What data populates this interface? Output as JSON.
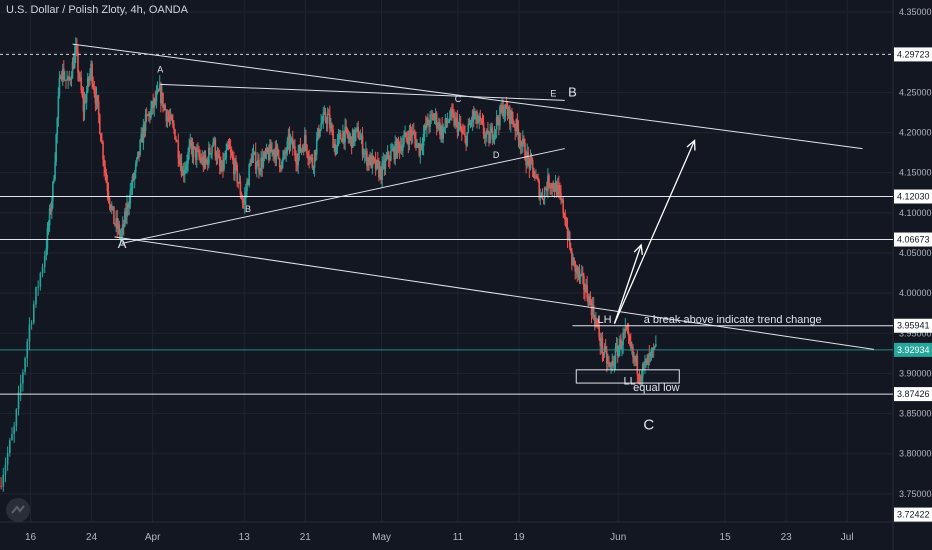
{
  "header": {
    "title": "U.S. Dollar / Polish Zloty, 4h, OANDA"
  },
  "chart_data": {
    "type": "candlestick",
    "symbol": "USDPLN",
    "timeframe": "4h",
    "x_ticks": [
      {
        "label": "16",
        "x": 16
      },
      {
        "label": "24",
        "x": 24
      },
      {
        "label": "Apr",
        "x": 32
      },
      {
        "label": "13",
        "x": 44
      },
      {
        "label": "21",
        "x": 52
      },
      {
        "label": "May",
        "x": 62
      },
      {
        "label": "11",
        "x": 72
      },
      {
        "label": "19",
        "x": 80
      },
      {
        "label": "Jun",
        "x": 93
      },
      {
        "label": "15",
        "x": 107
      },
      {
        "label": "23",
        "x": 115
      },
      {
        "label": "Jul",
        "x": 123
      }
    ],
    "y_ticks": [
      3.75,
      3.8,
      3.85,
      3.9,
      3.95,
      4.0,
      4.05,
      4.1,
      4.15,
      4.2,
      4.25,
      4.3,
      4.35
    ],
    "ylim": [
      3.715,
      4.365
    ],
    "xlim": [
      12,
      129
    ],
    "price_labels": [
      {
        "value": 4.29723,
        "text": "4.29723",
        "style": "dashed"
      },
      {
        "value": 4.1203,
        "text": "4.12030",
        "style": "line"
      },
      {
        "value": 4.06673,
        "text": "4.06673",
        "style": "line"
      },
      {
        "value": 3.95941,
        "text": "3.95941",
        "style": "line"
      },
      {
        "value": 3.92934,
        "text": "3.92934",
        "style": "current"
      },
      {
        "value": 3.87426,
        "text": "3.87426",
        "style": "line"
      },
      {
        "value": 3.72422,
        "text": "3.72422",
        "style": "bottom"
      }
    ],
    "trendlines": [
      {
        "name": "upper-trendline",
        "p1": [
          21.5,
          4.31
        ],
        "p2": [
          125,
          4.18
        ]
      },
      {
        "name": "lower-trendline",
        "p1": [
          27,
          4.07
        ],
        "p2": [
          126.5,
          3.93
        ]
      },
      {
        "name": "triangle-top",
        "p1": [
          33,
          4.26
        ],
        "p2": [
          86,
          4.24
        ]
      },
      {
        "name": "triangle-bottom",
        "p1": [
          28,
          4.062
        ],
        "p2": [
          86,
          4.18
        ]
      },
      {
        "name": "resistance-line",
        "p1": [
          87,
          3.959
        ],
        "p2": [
          129,
          3.959
        ]
      }
    ],
    "arrow": {
      "from": [
        92.5,
        3.962
      ],
      "via": [
        96,
        4.06
      ],
      "to": [
        103,
        4.19
      ]
    },
    "labels": [
      {
        "text": "A",
        "x": 28,
        "y": 4.056,
        "size": 13
      },
      {
        "text": "A",
        "x": 33,
        "y": 4.275,
        "size": 9
      },
      {
        "text": "B",
        "x": 44.5,
        "y": 4.101,
        "size": 9
      },
      {
        "text": "C",
        "x": 72,
        "y": 4.238,
        "size": 9
      },
      {
        "text": "D",
        "x": 77,
        "y": 4.168,
        "size": 9
      },
      {
        "text": "E",
        "x": 84.5,
        "y": 4.245,
        "size": 9
      },
      {
        "text": "B",
        "x": 87,
        "y": 4.245,
        "size": 13
      },
      {
        "text": "LH",
        "x": 91.2,
        "y": 3.963,
        "size": 11
      },
      {
        "text": "LL",
        "x": 94.5,
        "y": 3.886,
        "size": 11
      },
      {
        "text": "equal low",
        "x": 98,
        "y": 3.878,
        "size": 11
      },
      {
        "text": "C",
        "x": 97,
        "y": 3.83,
        "size": 15
      },
      {
        "text": "a break above indicate trend change",
        "x": 108,
        "y": 3.963,
        "size": 11
      }
    ],
    "annotation_box": {
      "x0": 87.5,
      "x1": 101,
      "y0": 3.888,
      "y1": 3.9045
    },
    "anchors": [
      [
        12,
        3.76
      ],
      [
        14,
        3.83
      ],
      [
        16,
        3.96
      ],
      [
        18,
        4.05
      ],
      [
        19,
        4.13
      ],
      [
        20,
        4.28
      ],
      [
        21,
        4.26
      ],
      [
        22,
        4.3
      ],
      [
        23,
        4.23
      ],
      [
        24,
        4.28
      ],
      [
        25,
        4.22
      ],
      [
        26,
        4.14
      ],
      [
        27,
        4.09
      ],
      [
        28,
        4.07
      ],
      [
        29,
        4.12
      ],
      [
        30,
        4.16
      ],
      [
        31,
        4.21
      ],
      [
        32,
        4.23
      ],
      [
        33,
        4.25
      ],
      [
        34,
        4.22
      ],
      [
        35,
        4.2
      ],
      [
        36,
        4.15
      ],
      [
        37,
        4.18
      ],
      [
        38,
        4.17
      ],
      [
        39,
        4.16
      ],
      [
        40,
        4.19
      ],
      [
        41,
        4.15
      ],
      [
        42,
        4.18
      ],
      [
        43,
        4.15
      ],
      [
        44,
        4.11
      ],
      [
        45,
        4.17
      ],
      [
        46,
        4.16
      ],
      [
        47,
        4.17
      ],
      [
        48,
        4.18
      ],
      [
        49,
        4.16
      ],
      [
        50,
        4.19
      ],
      [
        51,
        4.17
      ],
      [
        52,
        4.19
      ],
      [
        53,
        4.16
      ],
      [
        54,
        4.21
      ],
      [
        55,
        4.22
      ],
      [
        56,
        4.18
      ],
      [
        57,
        4.2
      ],
      [
        58,
        4.19
      ],
      [
        59,
        4.2
      ],
      [
        60,
        4.17
      ],
      [
        61,
        4.16
      ],
      [
        62,
        4.15
      ],
      [
        63,
        4.17
      ],
      [
        64,
        4.18
      ],
      [
        65,
        4.19
      ],
      [
        66,
        4.2
      ],
      [
        67,
        4.18
      ],
      [
        68,
        4.21
      ],
      [
        69,
        4.22
      ],
      [
        70,
        4.2
      ],
      [
        71,
        4.22
      ],
      [
        72,
        4.21
      ],
      [
        73,
        4.19
      ],
      [
        74,
        4.22
      ],
      [
        75,
        4.21
      ],
      [
        76,
        4.19
      ],
      [
        77,
        4.21
      ],
      [
        78,
        4.23
      ],
      [
        79,
        4.22
      ],
      [
        80,
        4.2
      ],
      [
        81,
        4.17
      ],
      [
        82,
        4.15
      ],
      [
        83,
        4.12
      ],
      [
        84,
        4.14
      ],
      [
        85,
        4.13
      ],
      [
        86,
        4.1
      ],
      [
        87,
        4.04
      ],
      [
        88,
        4.02
      ],
      [
        89,
        4.0
      ],
      [
        90,
        3.97
      ],
      [
        91,
        3.93
      ],
      [
        92,
        3.905
      ],
      [
        93,
        3.93
      ],
      [
        94,
        3.95
      ],
      [
        95,
        3.92
      ],
      [
        96,
        3.9
      ],
      [
        97,
        3.915
      ],
      [
        98,
        3.929
      ]
    ]
  }
}
